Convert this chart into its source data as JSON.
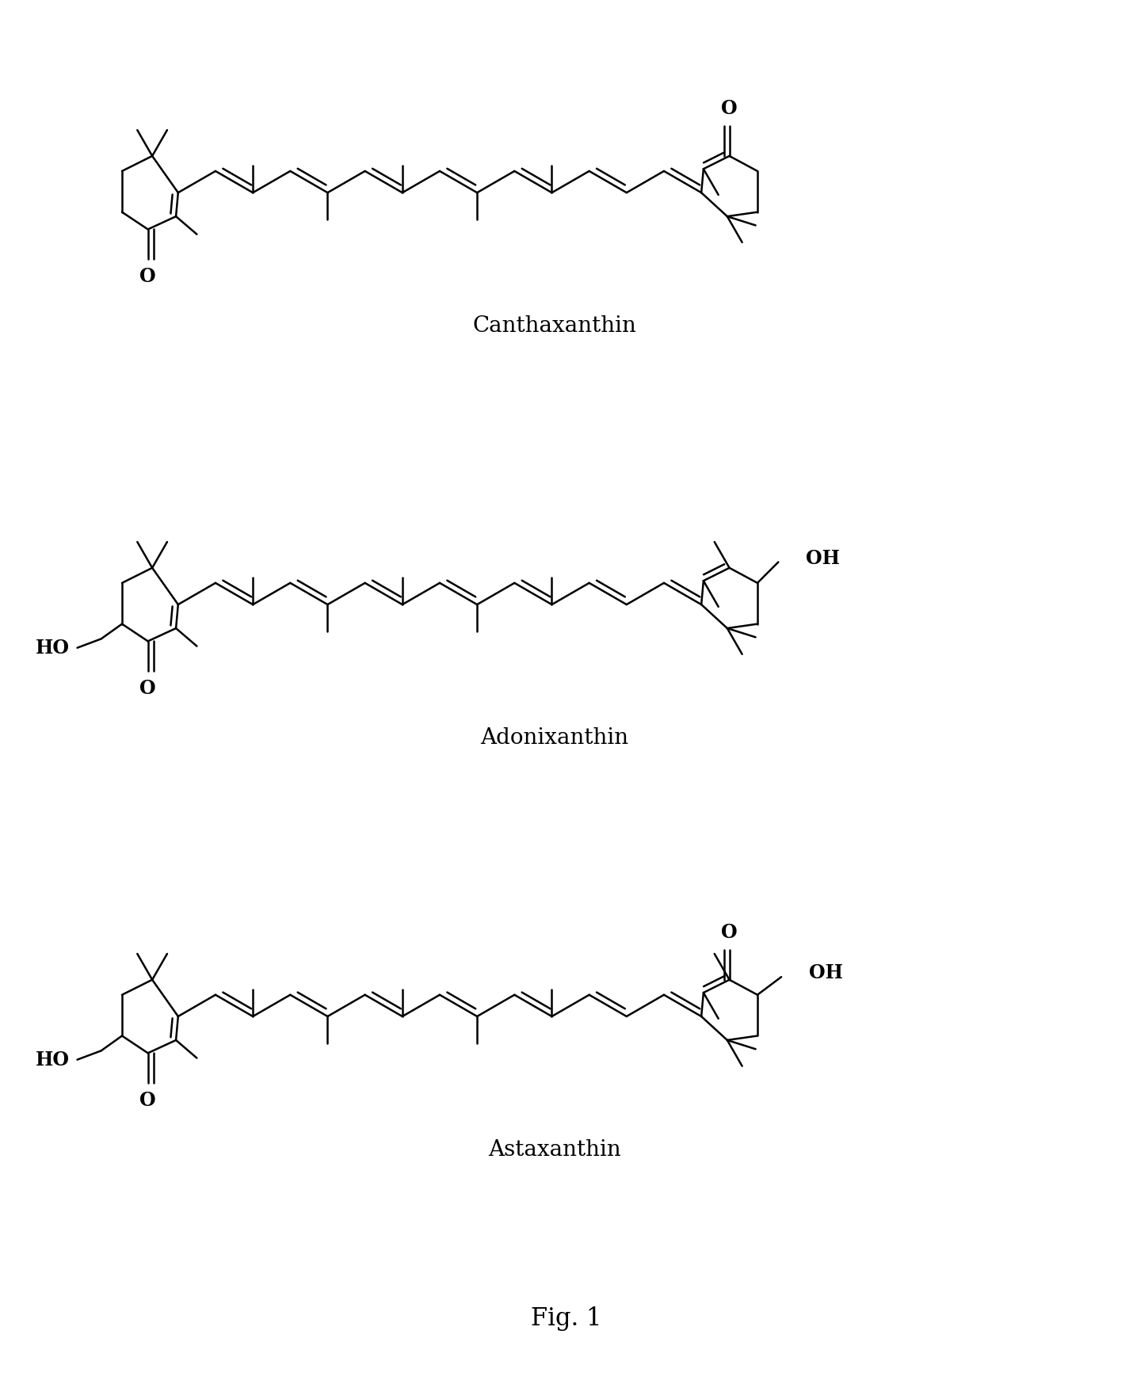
{
  "background_color": "#ffffff",
  "fig_width": 14.3,
  "fig_height": 17.47,
  "dpi": 100,
  "labels": {
    "canthaxanthin": "Canthaxanthin",
    "adonixanthin": "Adonixanthin",
    "astaxanthin": "Astaxanthin",
    "fig_label": "Fig. 1"
  },
  "label_fontsize": 20,
  "fig_label_fontsize": 22,
  "line_width": 1.8
}
